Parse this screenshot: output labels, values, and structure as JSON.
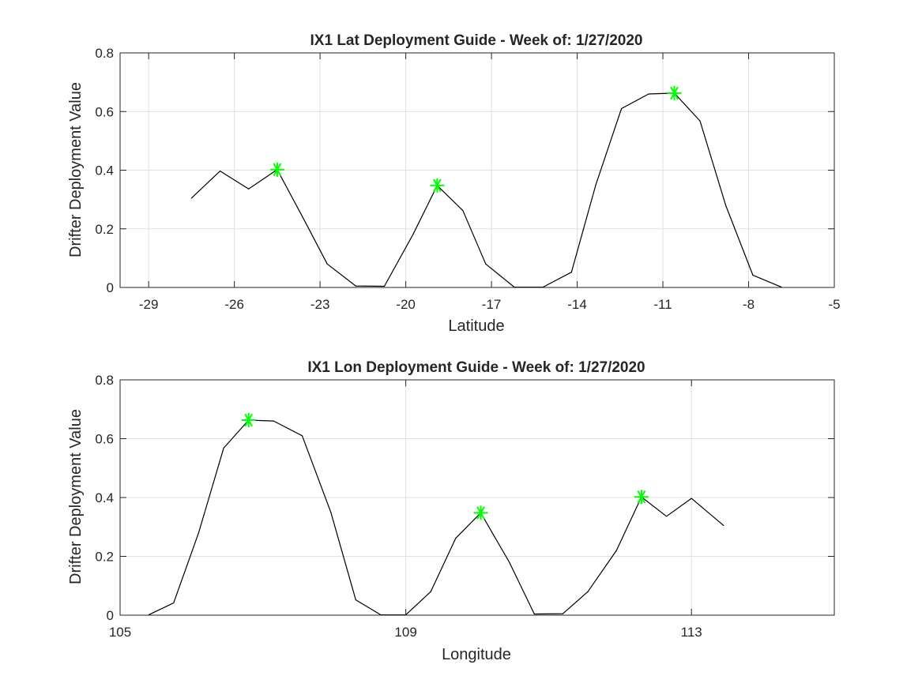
{
  "chart_data": [
    {
      "type": "line",
      "title": "IX1 Lat Deployment Guide - Week of: 1/27/2020",
      "xlabel": "Latitude",
      "ylabel": "Drifter Deployment Value",
      "xlim": [
        -30,
        -5
      ],
      "ylim": [
        0,
        0.8
      ],
      "xticks": [
        -29,
        -26,
        -23,
        -20,
        -17,
        -14,
        -11,
        -8,
        -5
      ],
      "xtick_labels": [
        "-29",
        "-26",
        "-23",
        "-20",
        "-17",
        "-14",
        "-11",
        "-8",
        "-5"
      ],
      "yticks": [
        0,
        0.2,
        0.4,
        0.6,
        0.8
      ],
      "ytick_labels": [
        "0",
        "0.2",
        "0.4",
        "0.6",
        "0.8"
      ],
      "grid": true,
      "line_color": "#000000",
      "marker_color": "#00ff00",
      "series": [
        {
          "x": [
            -27.5,
            -26.5,
            -25.5,
            -24.5,
            -23.5,
            -22.75,
            -21.75,
            -20.75,
            -19.75,
            -18.9,
            -18.0,
            -17.2,
            -16.2,
            -15.2,
            -14.2,
            -13.35,
            -12.45,
            -11.5,
            -10.6,
            -9.7,
            -8.8,
            -7.85,
            -6.85
          ],
          "y": [
            0.305,
            0.397,
            0.336,
            0.402,
            0.22,
            0.08,
            0.005,
            0.004,
            0.18,
            0.348,
            0.262,
            0.08,
            0.001,
            0.001,
            0.052,
            0.35,
            0.61,
            0.66,
            0.663,
            0.568,
            0.28,
            0.042,
            0.001
          ]
        }
      ],
      "markers": {
        "x": [
          -24.5,
          -18.9,
          -10.6
        ],
        "y": [
          0.402,
          0.348,
          0.663
        ]
      }
    },
    {
      "type": "line",
      "title": "IX1 Lon Deployment Guide - Week of: 1/27/2020",
      "xlabel": "Longitude",
      "ylabel": "Drifter Deployment Value",
      "xlim": [
        105,
        115
      ],
      "ylim": [
        0,
        0.8
      ],
      "xticks": [
        105,
        109,
        113
      ],
      "xtick_labels": [
        "105",
        "109",
        "113"
      ],
      "yticks": [
        0,
        0.2,
        0.4,
        0.6,
        0.8
      ],
      "ytick_labels": [
        "0",
        "0.2",
        "0.4",
        "0.6",
        "0.8"
      ],
      "grid": true,
      "line_color": "#000000",
      "marker_color": "#00ff00",
      "series": [
        {
          "x": [
            105.4,
            105.75,
            106.1,
            106.45,
            106.8,
            107.15,
            107.55,
            107.95,
            108.3,
            108.65,
            109.0,
            109.35,
            109.7,
            110.05,
            110.45,
            110.8,
            111.2,
            111.55,
            111.95,
            112.3,
            112.65,
            113.0,
            113.45
          ],
          "y": [
            0.001,
            0.042,
            0.28,
            0.568,
            0.663,
            0.66,
            0.61,
            0.35,
            0.052,
            0.001,
            0.001,
            0.08,
            0.262,
            0.348,
            0.18,
            0.004,
            0.005,
            0.08,
            0.22,
            0.402,
            0.336,
            0.397,
            0.305
          ]
        }
      ],
      "markers": {
        "x": [
          106.8,
          110.05,
          112.3
        ],
        "y": [
          0.663,
          0.348,
          0.402
        ]
      }
    }
  ]
}
